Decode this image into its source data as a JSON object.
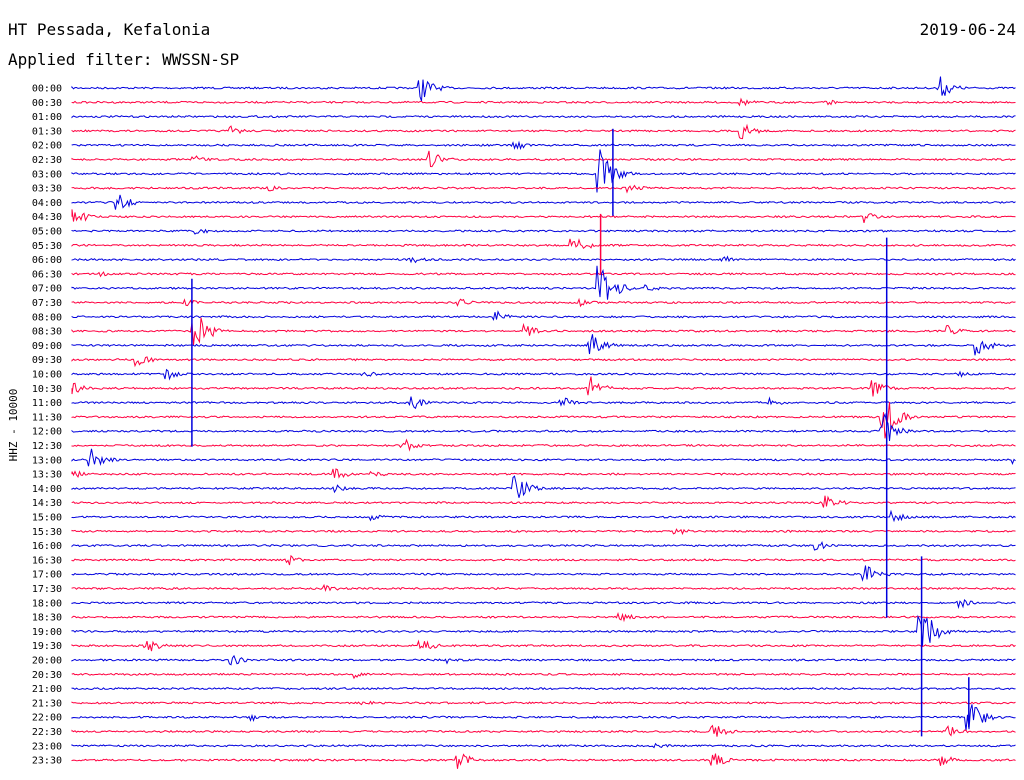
{
  "header": {
    "station": "HT Pessada, Kefalonia",
    "date": "2019-06-24",
    "filter": "Applied filter: WWSSN-SP"
  },
  "colors": {
    "blue": "#0000dd",
    "red": "#ff0040"
  },
  "chart_data": {
    "type": "helicorder",
    "channel_label": "HHZ - 10000",
    "rows": [
      "00:00",
      "00:30",
      "01:00",
      "01:30",
      "02:00",
      "02:30",
      "03:00",
      "03:30",
      "04:00",
      "04:30",
      "05:00",
      "05:30",
      "06:00",
      "06:30",
      "07:00",
      "07:30",
      "08:00",
      "08:30",
      "09:00",
      "09:30",
      "10:00",
      "10:30",
      "11:00",
      "11:30",
      "12:00",
      "12:30",
      "13:00",
      "13:30",
      "14:00",
      "14:30",
      "15:00",
      "15:30",
      "16:00",
      "16:30",
      "17:00",
      "17:30",
      "18:00",
      "18:30",
      "19:00",
      "19:30",
      "20:00",
      "20:30",
      "21:00",
      "21:30",
      "22:00",
      "22:30",
      "23:00",
      "23:30"
    ],
    "row_duration_min": 30,
    "row_colors": [
      "blue",
      "red"
    ],
    "events": [
      {
        "row": 0,
        "t": 0.37,
        "amp": 14
      },
      {
        "row": 0,
        "t": 0.92,
        "amp": 12
      },
      {
        "row": 1,
        "t": 0.71,
        "amp": 4
      },
      {
        "row": 1,
        "t": 0.8,
        "amp": 4
      },
      {
        "row": 3,
        "t": 0.17,
        "amp": 5
      },
      {
        "row": 3,
        "t": 0.71,
        "amp": 9
      },
      {
        "row": 4,
        "t": 0.47,
        "amp": 6
      },
      {
        "row": 5,
        "t": 0.13,
        "amp": 4
      },
      {
        "row": 5,
        "t": 0.38,
        "amp": 10
      },
      {
        "row": 6,
        "t": 0.56,
        "amp": 26
      },
      {
        "row": 7,
        "t": 0.59,
        "amp": 6
      },
      {
        "row": 7,
        "t": 0.21,
        "amp": 3
      },
      {
        "row": 8,
        "t": 0.05,
        "amp": 9
      },
      {
        "row": 9,
        "t": 0.0,
        "amp": 12
      },
      {
        "row": 9,
        "t": 0.84,
        "amp": 7
      },
      {
        "row": 10,
        "t": 0.13,
        "amp": 5
      },
      {
        "row": 11,
        "t": 0.53,
        "amp": 13
      },
      {
        "row": 12,
        "t": 0.36,
        "amp": 4
      },
      {
        "row": 12,
        "t": 0.69,
        "amp": 4
      },
      {
        "row": 13,
        "t": 0.03,
        "amp": 4
      },
      {
        "row": 14,
        "t": 0.56,
        "amp": 30
      },
      {
        "row": 14,
        "t": 0.61,
        "amp": 4
      },
      {
        "row": 15,
        "t": 0.12,
        "amp": 4
      },
      {
        "row": 15,
        "t": 0.41,
        "amp": 5
      },
      {
        "row": 15,
        "t": 0.54,
        "amp": 4
      },
      {
        "row": 16,
        "t": 0.45,
        "amp": 6
      },
      {
        "row": 17,
        "t": 0.48,
        "amp": 7
      },
      {
        "row": 17,
        "t": 0.13,
        "amp": 26
      },
      {
        "row": 17,
        "t": 0.93,
        "amp": 7
      },
      {
        "row": 18,
        "t": 0.55,
        "amp": 14
      },
      {
        "row": 18,
        "t": 0.96,
        "amp": 10
      },
      {
        "row": 19,
        "t": 0.07,
        "amp": 7
      },
      {
        "row": 20,
        "t": 0.1,
        "amp": 7
      },
      {
        "row": 20,
        "t": 0.31,
        "amp": 4
      },
      {
        "row": 20,
        "t": 0.94,
        "amp": 4
      },
      {
        "row": 21,
        "t": 0.0,
        "amp": 7
      },
      {
        "row": 21,
        "t": 0.55,
        "amp": 12
      },
      {
        "row": 21,
        "t": 0.85,
        "amp": 9
      },
      {
        "row": 22,
        "t": 0.36,
        "amp": 8
      },
      {
        "row": 22,
        "t": 0.52,
        "amp": 6
      },
      {
        "row": 22,
        "t": 0.74,
        "amp": 7
      },
      {
        "row": 23,
        "t": 0.86,
        "amp": 26
      },
      {
        "row": 24,
        "t": 0.86,
        "amp": 20
      },
      {
        "row": 25,
        "t": 0.35,
        "amp": 8
      },
      {
        "row": 26,
        "t": 0.02,
        "amp": 12
      },
      {
        "row": 26,
        "t": 1.0,
        "amp": 8
      },
      {
        "row": 27,
        "t": 0.0,
        "amp": 6
      },
      {
        "row": 27,
        "t": 0.28,
        "amp": 6
      },
      {
        "row": 27,
        "t": 0.32,
        "amp": 4
      },
      {
        "row": 28,
        "t": 0.47,
        "amp": 14
      },
      {
        "row": 28,
        "t": 0.28,
        "amp": 4
      },
      {
        "row": 29,
        "t": 0.8,
        "amp": 8
      },
      {
        "row": 30,
        "t": 0.87,
        "amp": 6
      },
      {
        "row": 30,
        "t": 0.32,
        "amp": 4
      },
      {
        "row": 31,
        "t": 0.64,
        "amp": 5
      },
      {
        "row": 32,
        "t": 0.79,
        "amp": 5
      },
      {
        "row": 33,
        "t": 0.23,
        "amp": 6
      },
      {
        "row": 34,
        "t": 0.84,
        "amp": 14
      },
      {
        "row": 35,
        "t": 0.27,
        "amp": 4
      },
      {
        "row": 36,
        "t": 0.94,
        "amp": 6
      },
      {
        "row": 37,
        "t": 0.58,
        "amp": 6
      },
      {
        "row": 38,
        "t": 0.9,
        "amp": 30
      },
      {
        "row": 39,
        "t": 0.08,
        "amp": 8
      },
      {
        "row": 39,
        "t": 0.37,
        "amp": 8
      },
      {
        "row": 40,
        "t": 0.17,
        "amp": 6
      },
      {
        "row": 40,
        "t": 0.4,
        "amp": 4
      },
      {
        "row": 41,
        "t": 0.3,
        "amp": 5
      },
      {
        "row": 43,
        "t": 0.31,
        "amp": 3
      },
      {
        "row": 44,
        "t": 0.95,
        "amp": 24
      },
      {
        "row": 44,
        "t": 0.19,
        "amp": 4
      },
      {
        "row": 45,
        "t": 0.68,
        "amp": 9
      },
      {
        "row": 45,
        "t": 0.93,
        "amp": 6
      },
      {
        "row": 46,
        "t": 0.62,
        "amp": 4
      },
      {
        "row": 47,
        "t": 0.41,
        "amp": 9
      },
      {
        "row": 47,
        "t": 0.68,
        "amp": 8
      },
      {
        "row": 47,
        "t": 0.92,
        "amp": 7
      }
    ],
    "spikes": [
      {
        "row": 6,
        "t": 0.573,
        "up": 45,
        "down": 42
      },
      {
        "row": 13,
        "t": 0.56,
        "up": 60,
        "down": 0
      },
      {
        "row": 16,
        "t": 0.127,
        "up": 38,
        "down": 130
      },
      {
        "row": 22,
        "t": 0.863,
        "up": 165,
        "down": 215
      },
      {
        "row": 38,
        "t": 0.9,
        "up": 75,
        "down": 105
      },
      {
        "row": 44,
        "t": 0.95,
        "up": 40,
        "down": 10
      }
    ]
  }
}
